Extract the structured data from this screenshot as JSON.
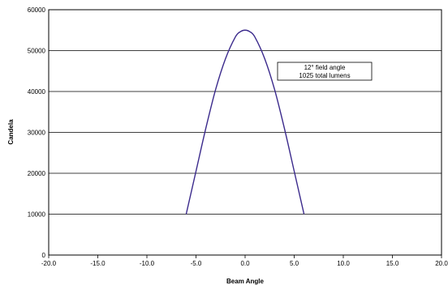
{
  "chart_data": {
    "type": "line",
    "title": "",
    "xlabel": "Beam Angle",
    "ylabel": "Candela",
    "xlim": [
      -20,
      20
    ],
    "ylim": [
      0,
      60000
    ],
    "x_ticks": [
      "-20.0",
      "-15.0",
      "-10.0",
      "-5.0",
      "0.0",
      "5.0",
      "10.0",
      "15.0",
      "20.0"
    ],
    "y_ticks": [
      "0",
      "10000",
      "20000",
      "30000",
      "40000",
      "50000",
      "60000"
    ],
    "grid": "horizontal",
    "line_color": "#3b2a8c",
    "series": [
      {
        "x": [
          -6.0,
          -5.0,
          -4.0,
          -3.0,
          -2.0,
          -1.0,
          -0.5,
          0.0,
          0.5,
          1.0,
          2.0,
          3.0,
          4.0,
          5.0,
          6.0
        ],
        "values": [
          10000,
          20500,
          31000,
          40500,
          48000,
          53300,
          54600,
          55000,
          54600,
          53300,
          48000,
          40500,
          31000,
          20500,
          10000
        ]
      }
    ],
    "annotation": {
      "lines": [
        "12° field angle",
        "1025 total lumens"
      ],
      "position": "top-right"
    }
  }
}
